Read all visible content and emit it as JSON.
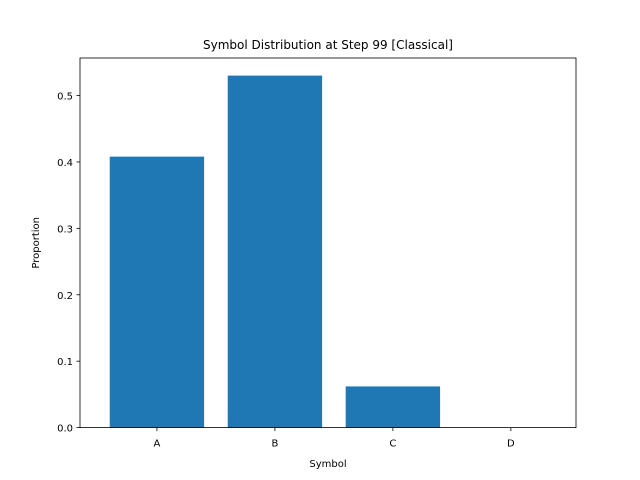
{
  "chart_data": {
    "type": "bar",
    "title": "Symbol Distribution at Step 99 [Classical]",
    "xlabel": "Symbol",
    "ylabel": "Proportion",
    "categories": [
      "A",
      "B",
      "C",
      "D"
    ],
    "values": [
      0.408,
      0.53,
      0.062,
      0.0
    ],
    "ylim": [
      0,
      0.5565
    ],
    "yticks": [
      0.0,
      0.1,
      0.2,
      0.3,
      0.4,
      0.5
    ],
    "ytick_labels": [
      "0.0",
      "0.1",
      "0.2",
      "0.3",
      "0.4",
      "0.5"
    ],
    "grid": false,
    "legend": "none",
    "bar_color": "#1f77b4"
  }
}
